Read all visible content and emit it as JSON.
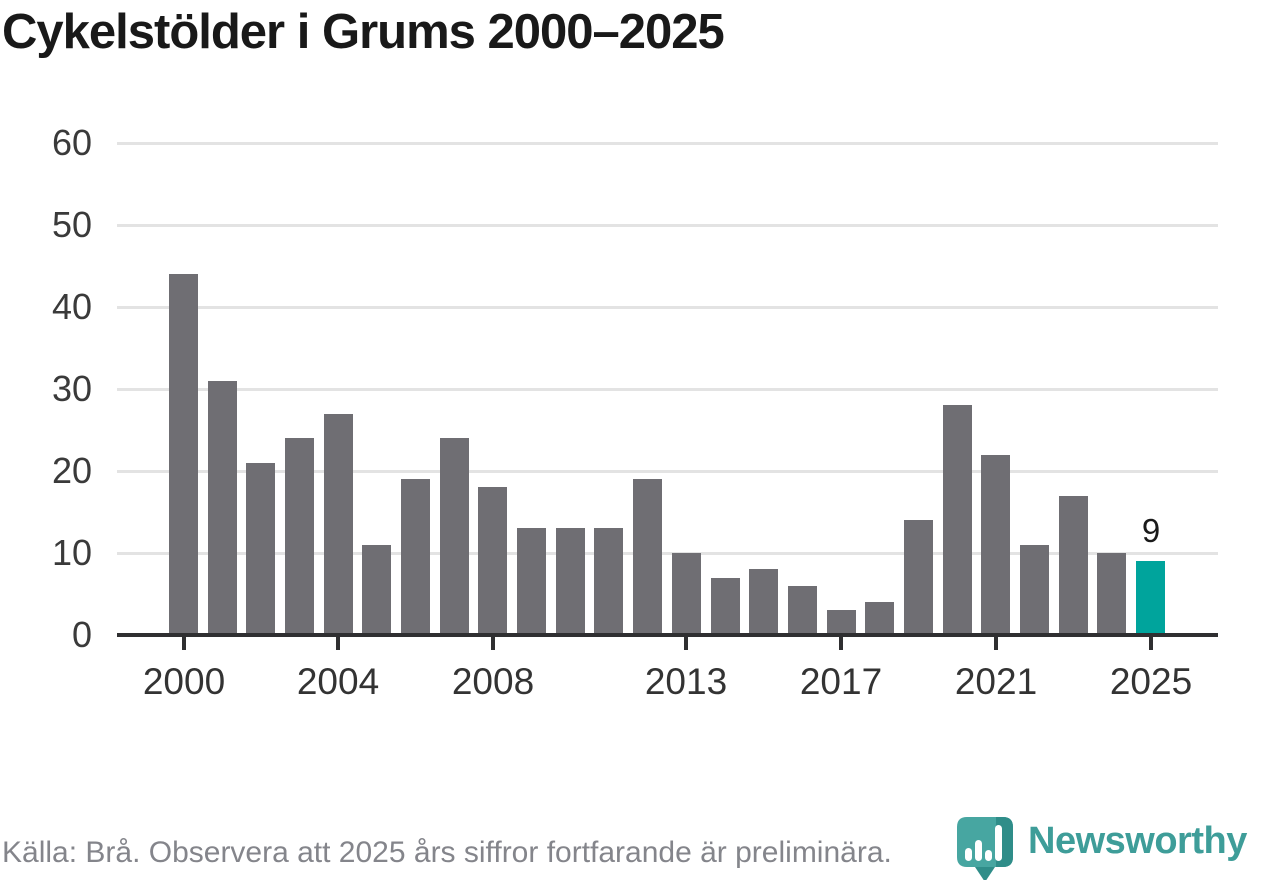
{
  "page": {
    "title": "Cykelstölder i Grums 2000–2025"
  },
  "chart_data": {
    "type": "bar",
    "title": "Cykelstölder i Grums 2000–2025",
    "categories": [
      "2000",
      "2001",
      "2002",
      "2003",
      "2004",
      "2005",
      "2006",
      "2007",
      "2008",
      "2009",
      "2010",
      "2011",
      "2012",
      "2013",
      "2014",
      "2015",
      "2016",
      "2017",
      "2018",
      "2019",
      "2020",
      "2021",
      "2022",
      "2023",
      "2024",
      "2025"
    ],
    "values": [
      44,
      31,
      21,
      24,
      27,
      11,
      19,
      24,
      18,
      13,
      13,
      13,
      19,
      10,
      7,
      8,
      6,
      3,
      4,
      14,
      28,
      22,
      11,
      17,
      10,
      9
    ],
    "highlight_category": "2025",
    "annotations": [
      {
        "category": "2025",
        "label": "9"
      }
    ],
    "xlabel": "",
    "ylabel": "",
    "ylim": [
      0,
      60
    ],
    "yticks": [
      0,
      10,
      20,
      30,
      40,
      50,
      60
    ],
    "xticks": [
      "2000",
      "2004",
      "2008",
      "2013",
      "2017",
      "2021",
      "2025"
    ],
    "grid": "horizontal",
    "legend": "none",
    "colors": {
      "bar": "#6F6E73",
      "highlight": "#00A49C",
      "gridline": "#E3E3E3",
      "axis": "#2F2F31",
      "tick_label": "#3A3A3A"
    }
  },
  "footer": {
    "source_note": "Källa: Brå. Observera att 2025 års siffror fortfarande är preliminära.",
    "brand": {
      "name": "Newsworthy",
      "color": "#3E9D99",
      "icon": "newsworthy-pin-bar-chart-icon",
      "icon_fill": "#47A6A1",
      "icon_shadow": "#2F8D89"
    }
  }
}
